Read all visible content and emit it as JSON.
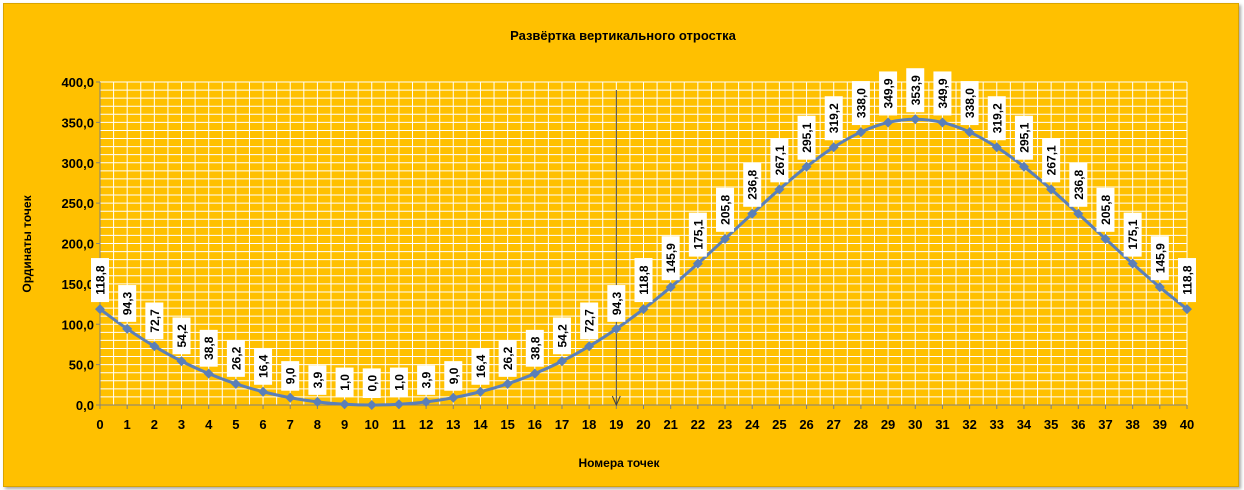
{
  "chart_data": {
    "type": "line",
    "title": "Развёртка вертикального отростка",
    "xlabel": "Номера точек",
    "ylabel": "Ординаты точек",
    "x": [
      0,
      1,
      2,
      3,
      4,
      5,
      6,
      7,
      8,
      9,
      10,
      11,
      12,
      13,
      14,
      15,
      16,
      17,
      18,
      19,
      20,
      21,
      22,
      23,
      24,
      25,
      26,
      27,
      28,
      29,
      30,
      31,
      32,
      33,
      34,
      35,
      36,
      37,
      38,
      39,
      40
    ],
    "series": [
      {
        "values": [
          118.8,
          94.3,
          72.7,
          54.2,
          38.8,
          26.2,
          16.4,
          9.0,
          3.9,
          1.0,
          0.0,
          1.0,
          3.9,
          9.0,
          16.4,
          26.2,
          38.8,
          54.2,
          72.7,
          94.3,
          118.8,
          145.9,
          175.1,
          205.8,
          236.8,
          267.1,
          295.1,
          319.2,
          338.0,
          349.9,
          353.9,
          349.9,
          338.0,
          319.2,
          295.1,
          267.1,
          236.8,
          205.8,
          175.1,
          145.9,
          118.8
        ],
        "labels": [
          "118,8",
          "94,3",
          "72,7",
          "54,2",
          "38,8",
          "26,2",
          "16,4",
          "9,0",
          "3,9",
          "1,0",
          "0,0",
          "1,0",
          "3,9",
          "9,0",
          "16,4",
          "26,2",
          "38,8",
          "54,2",
          "72,7",
          "94,3",
          "118,8",
          "145,9",
          "175,1",
          "205,8",
          "236,8",
          "267,1",
          "295,1",
          "319,2",
          "338,0",
          "349,9",
          "353,9",
          "349,9",
          "338,0",
          "319,2",
          "295,1",
          "267,1",
          "236,8",
          "205,8",
          "175,1",
          "145,9",
          "118,8"
        ],
        "color": "#5b7fb8"
      }
    ],
    "ylim": [
      0,
      400
    ],
    "yticks": [
      "0,0",
      "50,0",
      "100,0",
      "150,0",
      "200,0",
      "250,0",
      "300,0",
      "350,0",
      "400,0"
    ],
    "xlim": [
      0,
      40
    ],
    "grid": true,
    "legend": "none",
    "marker_line_at_x": 19,
    "colors": {
      "background": "#ffc000",
      "gridline": "#ffffff",
      "line": "#5b7fb8",
      "label_box": "#ffffff"
    }
  }
}
